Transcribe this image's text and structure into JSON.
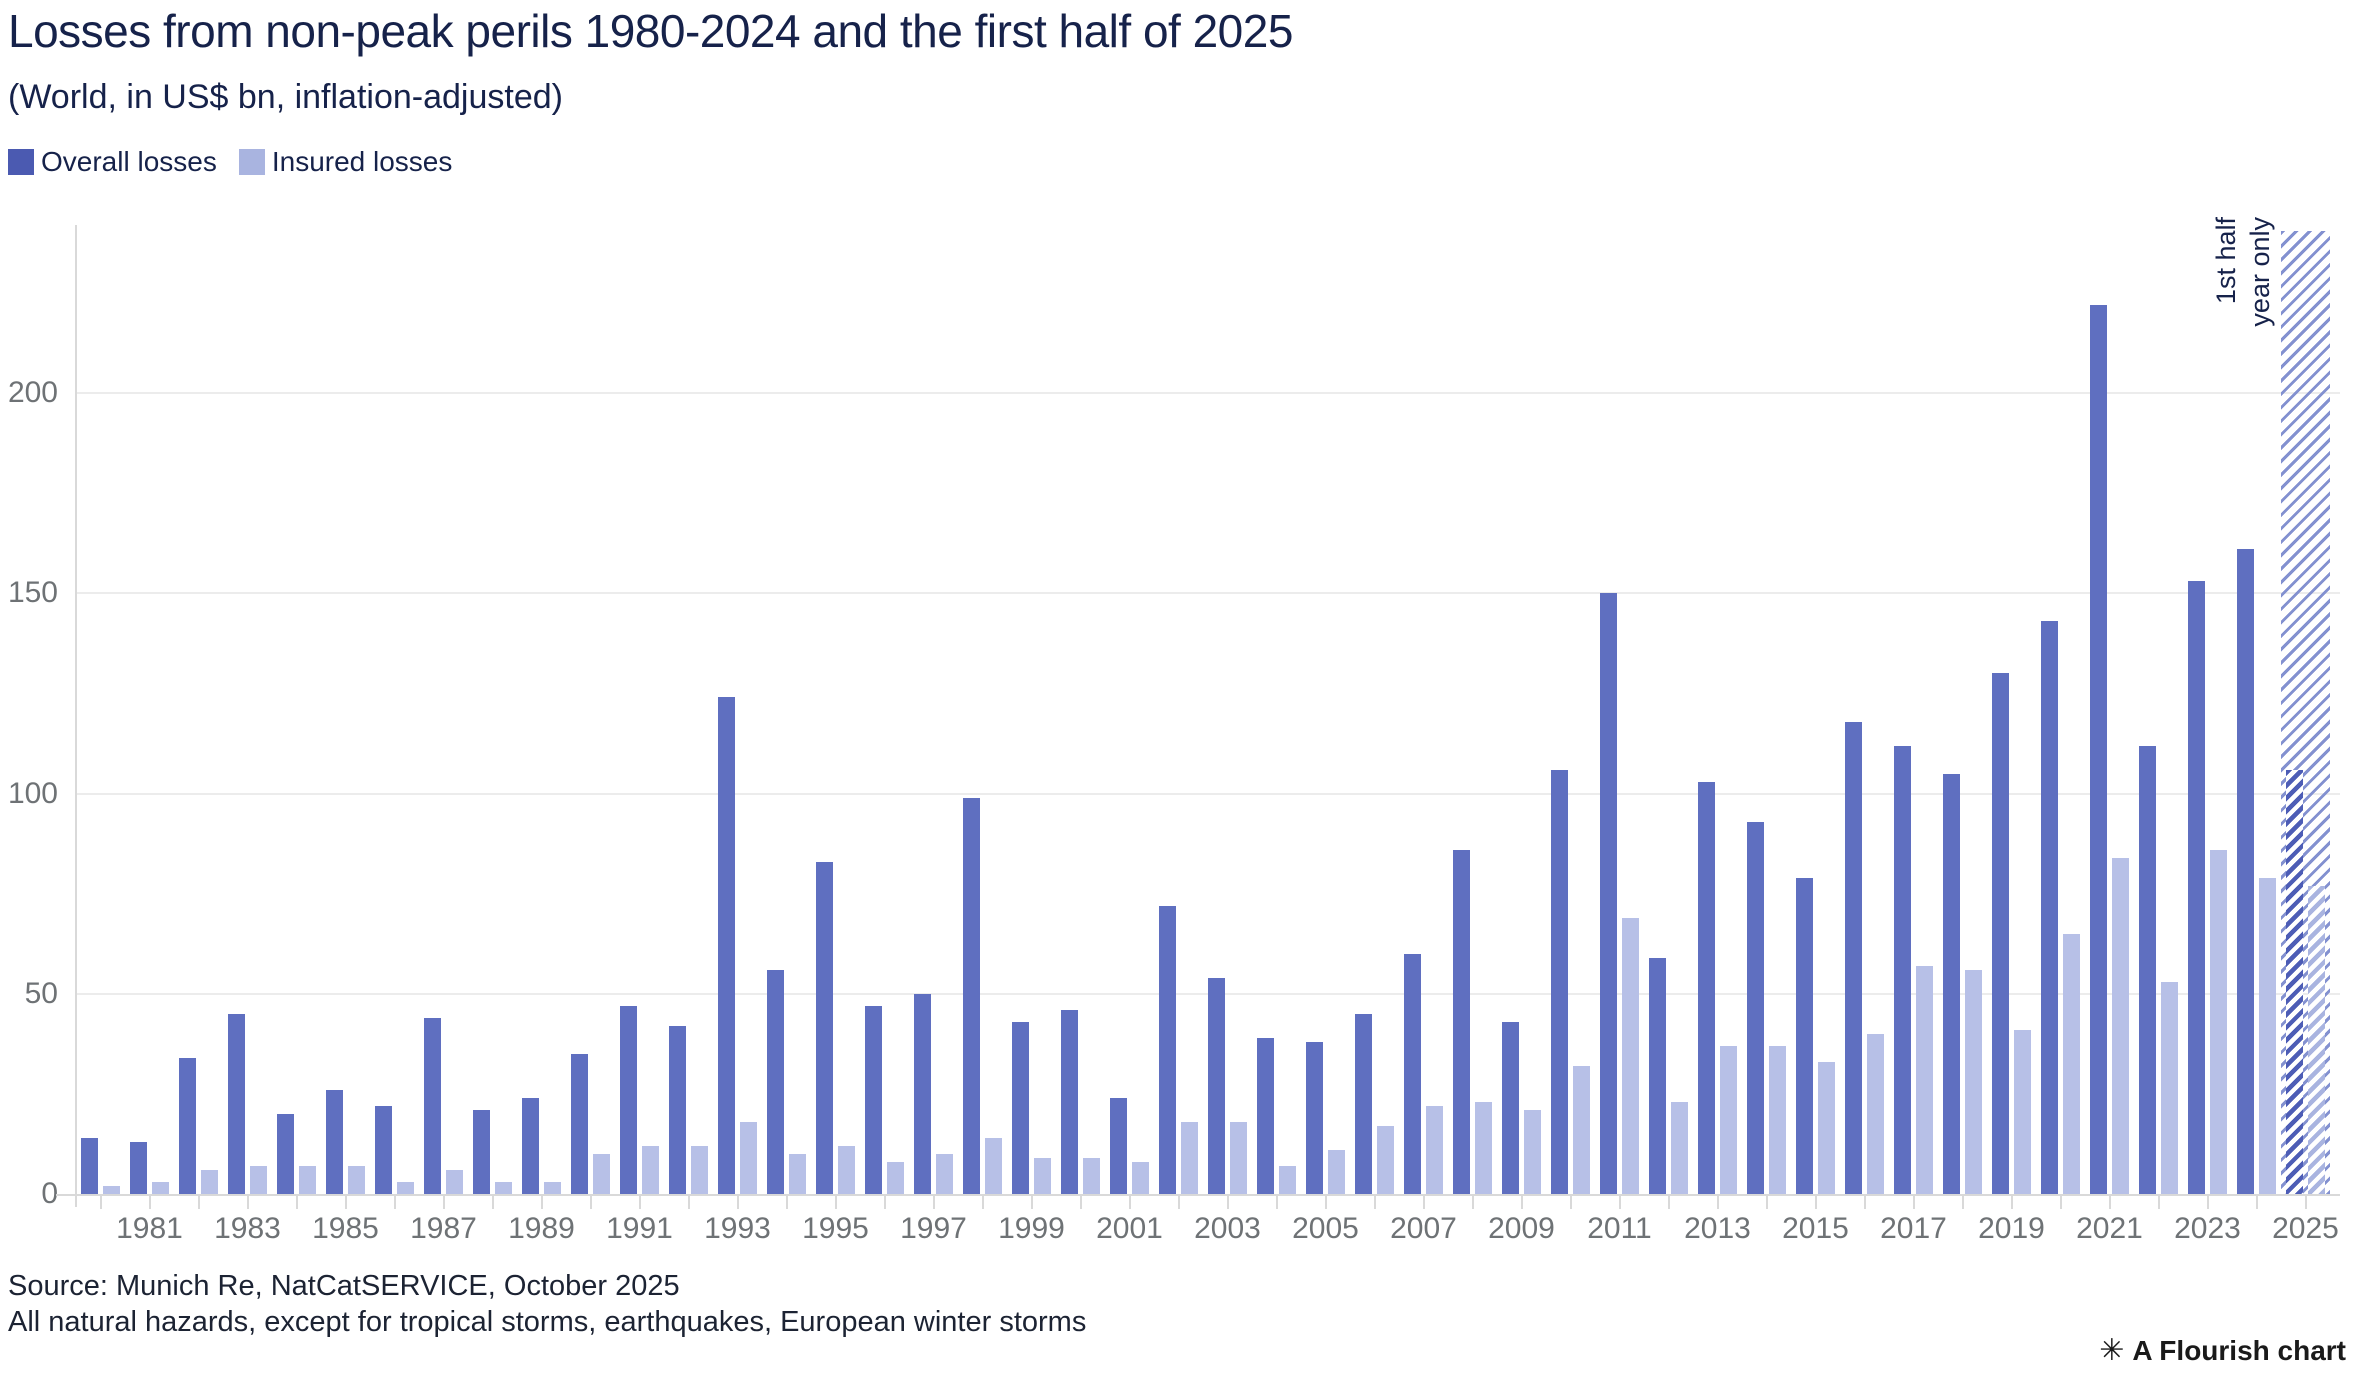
{
  "header": {
    "title": "Losses from non-peak perils 1980-2024 and the first half of 2025",
    "subtitle": "(World, in US$ bn, inflation-adjusted)"
  },
  "legend": [
    {
      "label": "Overall losses",
      "color": "#4b5ab1"
    },
    {
      "label": "Insured losses",
      "color": "#a9b4e0"
    }
  ],
  "annotation": {
    "line1": "1st half",
    "line2": "year only"
  },
  "footer": {
    "source": "Source: Munich Re, NatCatSERVICE, October 2025",
    "note": "All natural hazards, except for tropical storms, earthquakes, European winter storms",
    "attribution": "A Flourish chart",
    "attribution_icon": "eight-spoked-asterisk"
  },
  "colors": {
    "overall_bar": "#5f6fc0",
    "insured_bar": "#b7c0e7",
    "legend_overall": "#4b5ab1",
    "legend_insured": "#a9b4e0",
    "band_stripe": "#8391d0",
    "gridline": "#ececec",
    "axis_line": "#d9d9d9",
    "text_dark": "#16224a",
    "text_axis": "#6e7275"
  },
  "chart_data": {
    "type": "bar",
    "title": "Losses from non-peak perils 1980-2024 and the first half of 2025",
    "subtitle": "(World, in US$ bn, inflation-adjusted)",
    "xlabel": "",
    "ylabel": "US$ bn (inflation-adjusted)",
    "ylim": [
      0,
      242
    ],
    "yticks": [
      0,
      50,
      100,
      150,
      200
    ],
    "grid": true,
    "legend_position": "top-left",
    "categories": [
      1980,
      1981,
      1982,
      1983,
      1984,
      1985,
      1986,
      1987,
      1988,
      1989,
      1990,
      1991,
      1992,
      1993,
      1994,
      1995,
      1996,
      1997,
      1998,
      1999,
      2000,
      2001,
      2002,
      2003,
      2004,
      2005,
      2006,
      2007,
      2008,
      2009,
      2010,
      2011,
      2012,
      2013,
      2014,
      2015,
      2016,
      2017,
      2018,
      2019,
      2020,
      2021,
      2022,
      2023,
      2024,
      2025
    ],
    "xtick_labels": [
      "1981",
      "1983",
      "1985",
      "1987",
      "1989",
      "1991",
      "1993",
      "1995",
      "1997",
      "1999",
      "2001",
      "2003",
      "2005",
      "2007",
      "2009",
      "2011",
      "2013",
      "2015",
      "2017",
      "2019",
      "2021",
      "2023",
      "2025"
    ],
    "series": [
      {
        "name": "Overall losses",
        "values": [
          14,
          13,
          34,
          45,
          20,
          26,
          22,
          44,
          21,
          24,
          35,
          47,
          42,
          124,
          56,
          83,
          47,
          50,
          99,
          43,
          46,
          24,
          72,
          54,
          39,
          38,
          45,
          60,
          86,
          43,
          106,
          150,
          59,
          103,
          93,
          79,
          118,
          112,
          105,
          130,
          143,
          222,
          112,
          153,
          161,
          106
        ]
      },
      {
        "name": "Insured losses",
        "values": [
          2,
          3,
          6,
          7,
          7,
          7,
          3,
          6,
          3,
          3,
          10,
          12,
          12,
          18,
          10,
          12,
          8,
          10,
          14,
          9,
          9,
          8,
          18,
          18,
          7,
          11,
          17,
          22,
          23,
          21,
          32,
          69,
          23,
          37,
          37,
          33,
          40,
          57,
          56,
          41,
          65,
          84,
          53,
          86,
          79,
          77
        ]
      }
    ],
    "highlight_band": {
      "category": 2025,
      "label": "1st half year only",
      "style": "diagonal-hatch"
    }
  }
}
